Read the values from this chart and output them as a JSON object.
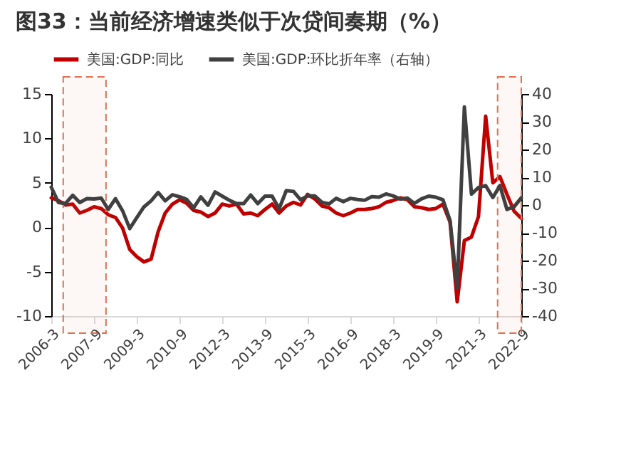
{
  "chart_data": {
    "type": "line",
    "title": "图33：当前经济增速类似于次贷间奏期（%）",
    "x": [
      "2006-03",
      "2006-06",
      "2006-09",
      "2006-12",
      "2007-03",
      "2007-06",
      "2007-09",
      "2007-12",
      "2008-03",
      "2008-06",
      "2008-09",
      "2008-12",
      "2009-03",
      "2009-06",
      "2009-09",
      "2009-12",
      "2010-03",
      "2010-06",
      "2010-09",
      "2010-12",
      "2011-03",
      "2011-06",
      "2011-09",
      "2011-12",
      "2012-03",
      "2012-06",
      "2012-09",
      "2012-12",
      "2013-03",
      "2013-06",
      "2013-09",
      "2013-12",
      "2014-03",
      "2014-06",
      "2014-09",
      "2014-12",
      "2015-03",
      "2015-06",
      "2015-09",
      "2015-12",
      "2016-03",
      "2016-06",
      "2016-09",
      "2016-12",
      "2017-03",
      "2017-06",
      "2017-09",
      "2017-12",
      "2018-03",
      "2018-06",
      "2018-09",
      "2018-12",
      "2019-03",
      "2019-06",
      "2019-09",
      "2019-12",
      "2020-03",
      "2020-06",
      "2020-09",
      "2020-12",
      "2021-03",
      "2021-06",
      "2021-09",
      "2021-12",
      "2022-03",
      "2022-06",
      "2022-09"
    ],
    "series": [
      {
        "name": "美国:GDP:同比",
        "color": "#c00000",
        "values": [
          3.3,
          3.0,
          2.5,
          2.6,
          1.6,
          1.9,
          2.3,
          2.1,
          1.4,
          1.1,
          -0.1,
          -2.5,
          -3.3,
          -3.9,
          -3.6,
          -0.5,
          1.6,
          2.6,
          3.1,
          2.7,
          1.9,
          1.7,
          1.2,
          1.6,
          2.6,
          2.4,
          2.6,
          1.5,
          1.6,
          1.3,
          2.0,
          2.6,
          1.6,
          2.4,
          2.8,
          2.5,
          3.7,
          3.2,
          2.4,
          2.2,
          1.6,
          1.3,
          1.6,
          2.0,
          2.0,
          2.1,
          2.3,
          2.8,
          3.0,
          3.3,
          3.1,
          2.3,
          2.2,
          2.0,
          2.1,
          2.6,
          0.6,
          -8.4,
          -1.5,
          -1.1,
          1.2,
          12.5,
          5.0,
          5.7,
          3.7,
          1.8,
          1.0
        ]
      },
      {
        "name": "美国:GDP:环比折年率（右轴）",
        "color": "#404040",
        "axis": "y2",
        "values": [
          6.4,
          0.9,
          0.6,
          3.5,
          0.9,
          2.3,
          2.2,
          2.5,
          -1.6,
          2.3,
          -2.1,
          -8.5,
          -4.6,
          -0.7,
          1.5,
          4.5,
          1.5,
          3.7,
          3.0,
          2.0,
          -1.0,
          2.9,
          -0.1,
          4.7,
          3.2,
          1.7,
          0.5,
          0.5,
          3.6,
          0.5,
          3.2,
          3.2,
          -1.4,
          5.2,
          4.9,
          1.9,
          3.3,
          3.3,
          1.0,
          0.4,
          2.4,
          1.2,
          2.4,
          2.0,
          1.7,
          3.0,
          2.8,
          4.0,
          3.3,
          2.1,
          2.5,
          0.6,
          2.2,
          3.2,
          2.8,
          1.9,
          -5.5,
          -29.9,
          35.3,
          3.9,
          6.3,
          7.0,
          2.7,
          7.0,
          -1.6,
          -0.6,
          2.6
        ]
      }
    ],
    "xlim": [
      "2006-03",
      "2022-09"
    ],
    "xticks": [
      {
        "value": "2006-03",
        "label": "2006-3"
      },
      {
        "value": "2007-09",
        "label": "2007-9"
      },
      {
        "value": "2009-03",
        "label": "2009-3"
      },
      {
        "value": "2010-09",
        "label": "2010-9"
      },
      {
        "value": "2012-03",
        "label": "2012-3"
      },
      {
        "value": "2013-09",
        "label": "2013-9"
      },
      {
        "value": "2015-03",
        "label": "2015-3"
      },
      {
        "value": "2016-09",
        "label": "2016-9"
      },
      {
        "value": "2018-03",
        "label": "2018-3"
      },
      {
        "value": "2019-09",
        "label": "2019-9"
      },
      {
        "value": "2021-03",
        "label": "2021-3"
      },
      {
        "value": "2022-09",
        "label": "2022-9"
      }
    ],
    "ylim": [
      -10,
      15
    ],
    "yticks": [
      -10,
      -5,
      0,
      5,
      10,
      15
    ],
    "y2lim": [
      -40,
      40
    ],
    "y2ticks": [
      -40,
      -30,
      -20,
      -10,
      0,
      10,
      20,
      30,
      40
    ],
    "bands": [
      {
        "axis": "x",
        "from": "2006-08",
        "to": "2008-02",
        "color": "#e07050"
      },
      {
        "axis": "x",
        "from": "2021-11",
        "to": "2022-09",
        "color": "#e07050"
      }
    ],
    "legend": "top",
    "grid": false,
    "marker": "none",
    "line_style": "solid"
  }
}
